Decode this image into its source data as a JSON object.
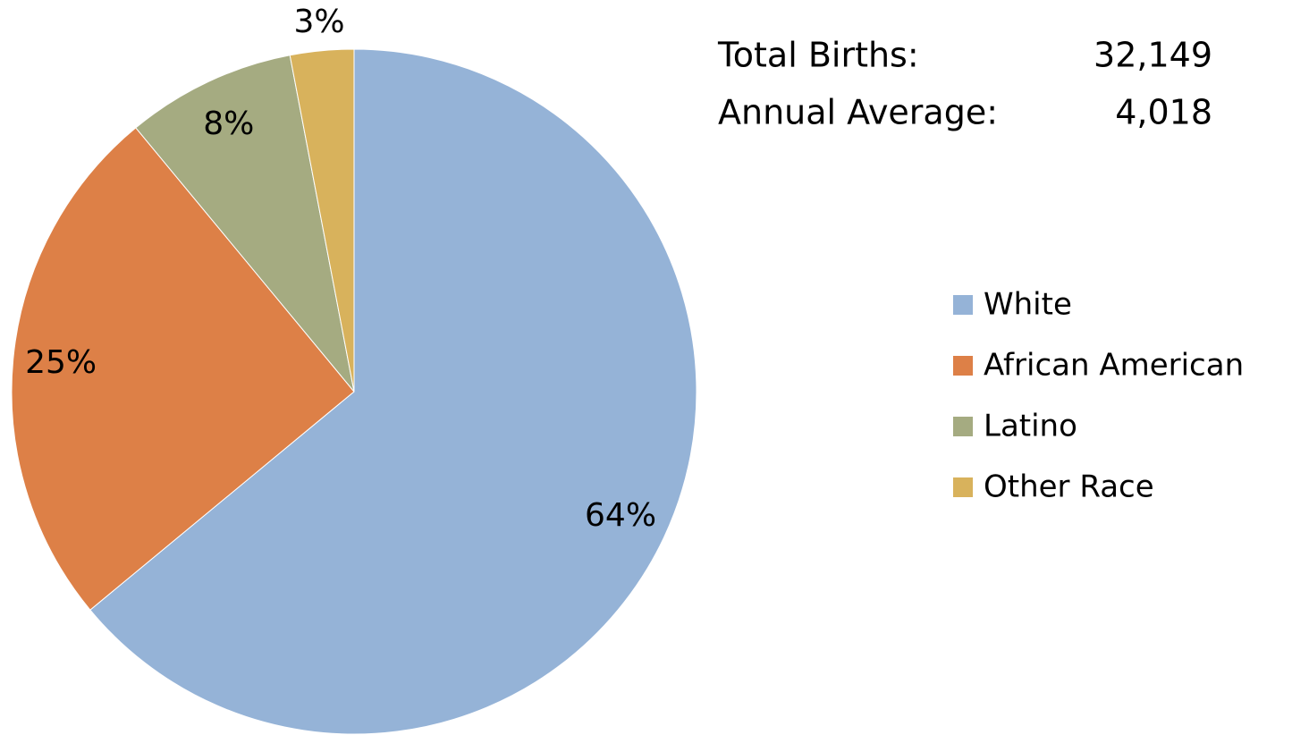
{
  "chart_data": {
    "type": "pie",
    "categories": [
      "White",
      "African American",
      "Latino",
      "Other Race"
    ],
    "values": [
      64,
      25,
      8,
      3
    ],
    "value_labels": [
      "64%",
      "25%",
      "8%",
      "3%"
    ],
    "colors": [
      "#95b3d7",
      "#dd8047",
      "#a5ab81",
      "#d8b25c"
    ],
    "legend": "right",
    "annotations": [
      {
        "label": "Total Births:",
        "value": "32,149"
      },
      {
        "label": "Annual Average:",
        "value": "4,018"
      }
    ]
  }
}
